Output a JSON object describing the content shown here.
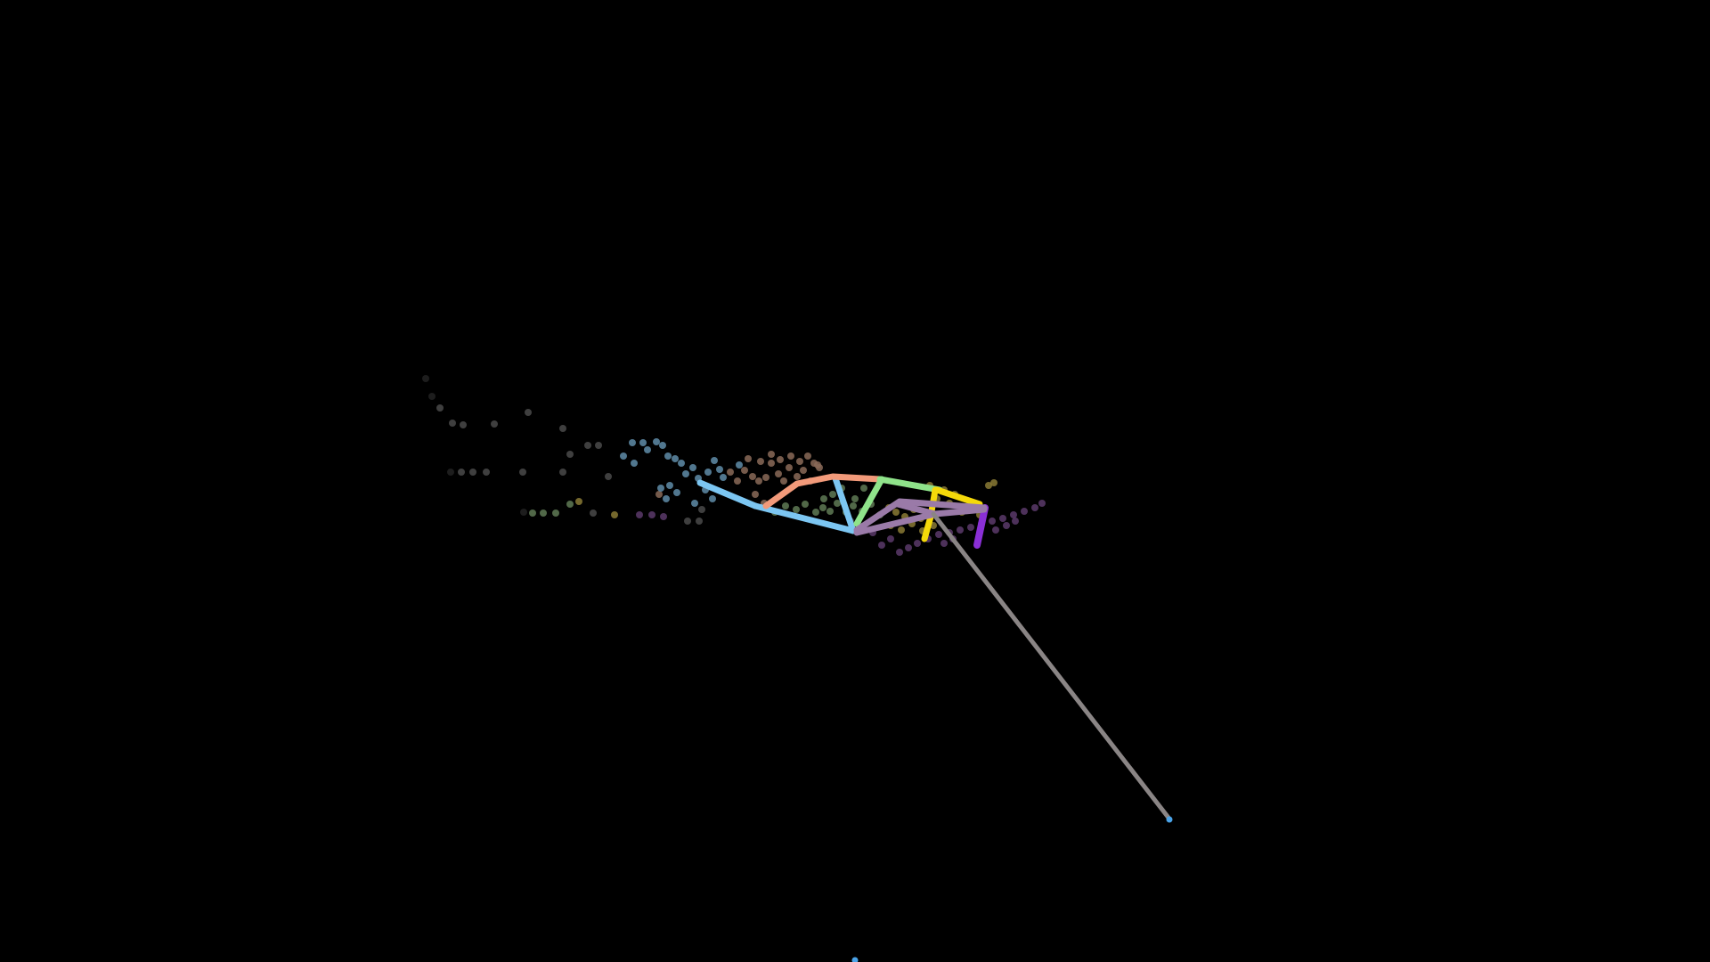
{
  "scene": {
    "background_color": "#000000",
    "skeleton_colors": {
      "limb_blue": "#7cc6f2",
      "limb_salmon": "#f29a7a",
      "limb_green": "#8fe38a",
      "limb_yellow": "#f5d90a",
      "limb_mauve": "#9a7aa8",
      "limb_purple": "#8a2fd6",
      "limb_gray": "#8a8585",
      "joint_blue": "#4aa3e8"
    },
    "trail_colors": {
      "blue": "#5f8ca8",
      "salmon": "#8a6a58",
      "green": "#5f7a55",
      "yellow": "#8a7a35",
      "purple": "#5a3a6a",
      "gray": "#4a4a4a",
      "dark": "#222222"
    }
  }
}
